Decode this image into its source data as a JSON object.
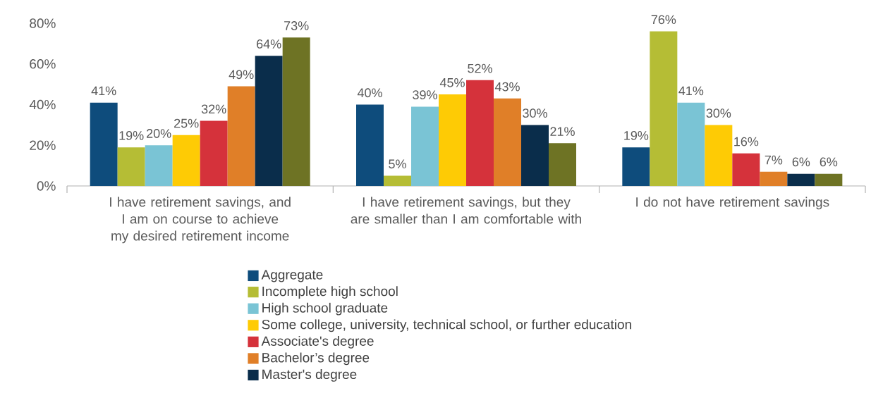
{
  "chart_data": {
    "type": "bar",
    "categories": [
      "I have retirement savings, and I am on course to achieve my desired retirement income",
      "I have retirement savings, but they are smaller than I am comfortable with",
      "I do not have retirement savings"
    ],
    "series": [
      {
        "name": "Aggregate",
        "color": "#0e4c7c",
        "values": [
          41,
          40,
          19
        ],
        "value_labels": [
          "41%",
          "40%",
          "19%"
        ]
      },
      {
        "name": "Incomplete high school",
        "color": "#b5bd35",
        "values": [
          19,
          5,
          76
        ],
        "value_labels": [
          "19%",
          "5%",
          "76%"
        ]
      },
      {
        "name": "High school graduate",
        "color": "#7ac4d5",
        "values": [
          20,
          39,
          41
        ],
        "value_labels": [
          "20%",
          "39%",
          "41%"
        ]
      },
      {
        "name": "Some college, university, technical school, or further education",
        "color": "#fecb05",
        "values": [
          25,
          45,
          30
        ],
        "value_labels": [
          "25%",
          "45%",
          "30%"
        ]
      },
      {
        "name": "Associate's degree",
        "color": "#d5323b",
        "values": [
          32,
          52,
          16
        ],
        "value_labels": [
          "32%",
          "52%",
          "16%"
        ]
      },
      {
        "name": "Bachelor’s degree",
        "color": "#e07f28",
        "values": [
          49,
          43,
          7
        ],
        "value_labels": [
          "49%",
          "43%",
          "7%"
        ]
      },
      {
        "name": "Master's degree",
        "color": "#0a2d4b",
        "values": [
          64,
          30,
          6
        ],
        "value_labels": [
          "64%",
          "30%",
          "6%"
        ]
      },
      {
        "color": "#6e7324",
        "values": [
          73,
          21,
          6
        ],
        "value_labels": [
          "73%",
          "21%",
          "6%"
        ]
      }
    ],
    "ylim": [
      0,
      80
    ],
    "yticks": [
      {
        "value": 0,
        "label": "0%"
      },
      {
        "value": 20,
        "label": "20%"
      },
      {
        "value": 40,
        "label": "40%"
      },
      {
        "value": 60,
        "label": "60%"
      },
      {
        "value": 80,
        "label": "80%"
      }
    ],
    "grid": false,
    "legend": "bottom"
  }
}
